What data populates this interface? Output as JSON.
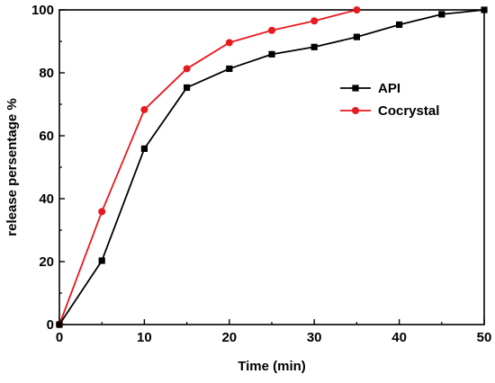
{
  "chart_data": {
    "type": "line",
    "xlabel": "Time (min)",
    "ylabel": "release persentage %",
    "xlim": [
      0,
      50
    ],
    "ylim": [
      0,
      100
    ],
    "xticks": [
      0,
      10,
      20,
      30,
      40,
      50
    ],
    "yticks": [
      0,
      20,
      40,
      60,
      80,
      100
    ],
    "grid": false,
    "legend_position": "upper-right",
    "series": [
      {
        "name": "API",
        "color": "#000000",
        "marker": "square",
        "x": [
          0,
          5,
          10,
          15,
          20,
          25,
          30,
          35,
          40,
          45,
          50
        ],
        "y": [
          0,
          20.3,
          55.9,
          75.3,
          81.3,
          85.9,
          88.2,
          91.4,
          95.3,
          98.6,
          100
        ]
      },
      {
        "name": "Cocrystal",
        "color": "#e8191f",
        "marker": "circle",
        "x": [
          0,
          5,
          10,
          15,
          20,
          25,
          30,
          35
        ],
        "y": [
          0,
          35.9,
          68.3,
          81.3,
          89.6,
          93.5,
          96.5,
          100
        ]
      }
    ]
  }
}
